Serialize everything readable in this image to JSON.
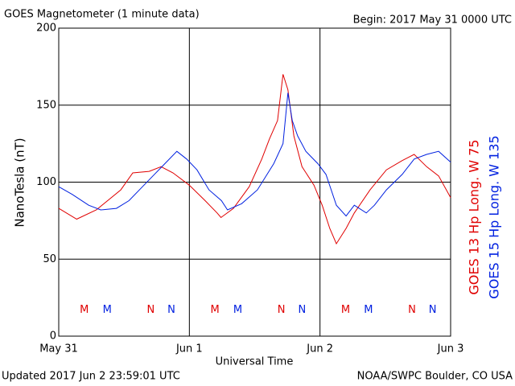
{
  "chart_data": {
    "type": "line",
    "title": "GOES Magnetometer (1 minute data)",
    "subtitle": "Begin:  2017 May 31 0000 UTC",
    "y_label": "NanoTesla (nT)",
    "x_label": "Universal Time",
    "footer_left": "Updated 2017 Jun  2 23:59:01 UTC",
    "footer_right": "NOAA/SWPC Boulder, CO USA",
    "xlim": [
      0,
      72
    ],
    "xticks": [
      {
        "value": 0,
        "label": "May 31"
      },
      {
        "value": 24,
        "label": "Jun 1"
      },
      {
        "value": 48,
        "label": "Jun 2"
      },
      {
        "value": 72,
        "label": "Jun 3"
      }
    ],
    "ylim": [
      0,
      200
    ],
    "yticks": [
      0,
      50,
      100,
      150,
      200
    ],
    "grid": true,
    "series": [
      {
        "name": "GOES 13 Hp  Long. W 75",
        "color": "#e00000",
        "x": [
          0,
          3.3,
          6.9,
          11.4,
          13.6,
          16.6,
          18.8,
          21.0,
          24.0,
          26.9,
          29.1,
          29.8,
          32.1,
          35.0,
          37.3,
          38.7,
          40.2,
          41.2,
          42.1,
          43.2,
          44.7,
          46.9,
          48.4,
          49.8,
          51.0,
          52.8,
          54.3,
          57.2,
          60.2,
          63.1,
          65.3,
          67.6,
          69.8,
          72
        ],
        "values": [
          83,
          76,
          82,
          95,
          106,
          107,
          110,
          106,
          98,
          88,
          80,
          77,
          83,
          97,
          115,
          128,
          140,
          170,
          160,
          130,
          110,
          98,
          85,
          70,
          60,
          70,
          80,
          95,
          108,
          114,
          118,
          110,
          104,
          90
        ]
      },
      {
        "name": "GOES 15 Hp  Long. W 135",
        "color": "#0020e0",
        "x": [
          0,
          2.5,
          5.5,
          7.7,
          10.6,
          12.9,
          15.1,
          17.3,
          19.5,
          21.7,
          23.5,
          25.4,
          27.6,
          29.9,
          31.0,
          33.6,
          36.5,
          39.5,
          41.2,
          42.1,
          42.9,
          43.9,
          45.4,
          47.6,
          49.1,
          51.0,
          52.8,
          54.3,
          56.5,
          58.0,
          60.2,
          63.1,
          65.3,
          67.6,
          69.8,
          72
        ],
        "values": [
          97,
          92,
          85,
          82,
          83,
          88,
          96,
          104,
          112,
          120,
          115,
          108,
          95,
          88,
          82,
          86,
          95,
          112,
          125,
          158,
          140,
          130,
          120,
          112,
          105,
          85,
          78,
          85,
          80,
          85,
          95,
          105,
          115,
          118,
          120,
          113
        ]
      }
    ],
    "annotations": [
      {
        "text": "M",
        "x": 4.7,
        "y": 17,
        "series": 0
      },
      {
        "text": "M",
        "x": 8.9,
        "y": 17,
        "series": 1
      },
      {
        "text": "N",
        "x": 16.9,
        "y": 17,
        "series": 0
      },
      {
        "text": "N",
        "x": 20.7,
        "y": 17,
        "series": 1
      },
      {
        "text": "M",
        "x": 28.7,
        "y": 17,
        "series": 0
      },
      {
        "text": "M",
        "x": 32.9,
        "y": 17,
        "series": 1
      },
      {
        "text": "N",
        "x": 40.9,
        "y": 17,
        "series": 0
      },
      {
        "text": "N",
        "x": 44.7,
        "y": 17,
        "series": 1
      },
      {
        "text": "M",
        "x": 52.7,
        "y": 17,
        "series": 0
      },
      {
        "text": "M",
        "x": 56.9,
        "y": 17,
        "series": 1
      },
      {
        "text": "N",
        "x": 64.9,
        "y": 17,
        "series": 0
      },
      {
        "text": "N",
        "x": 68.7,
        "y": 17,
        "series": 1
      }
    ]
  }
}
